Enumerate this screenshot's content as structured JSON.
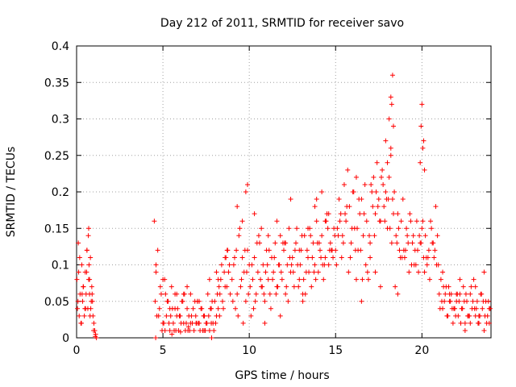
{
  "chart_data": {
    "type": "scatter",
    "title": "Day 212 of 2011, SRMTID for receiver savo",
    "xlabel": "GPS time / hours",
    "ylabel": "SRMTID / TECUs",
    "xlim": [
      0,
      24
    ],
    "ylim": [
      0,
      0.4
    ],
    "x_ticks": [
      0,
      5,
      10,
      15,
      20
    ],
    "x_tick_labels": [
      "0",
      "5",
      "10",
      "15",
      "20"
    ],
    "y_ticks": [
      0,
      0.05,
      0.1,
      0.15,
      0.2,
      0.25,
      0.3,
      0.35,
      0.4
    ],
    "y_tick_labels": [
      "0",
      "0.05",
      "0.1",
      "0.15",
      "0.2",
      "0.25",
      "0.3",
      "0.35",
      "0.4"
    ],
    "grid": true,
    "marker": "+",
    "color": "#ff0000",
    "series": [
      {
        "name": "SRMTID",
        "x": [
          0.02,
          0.05,
          0.1,
          0.15,
          0.2,
          0.25,
          0.3,
          0.35,
          0.4,
          0.45,
          0.5,
          0.55,
          0.6,
          0.65,
          0.7,
          0.75,
          0.8,
          0.85,
          0.9,
          0.95,
          1.0,
          1.05,
          1.1,
          1.15,
          0.08,
          0.18,
          0.28,
          0.38,
          0.48,
          0.58,
          0.68,
          0.78,
          0.88,
          0.98,
          1.08,
          0.12,
          0.32,
          0.52,
          0.72,
          0.92,
          0.6,
          0.7,
          0.75,
          0.82,
          4.5,
          4.6,
          4.7,
          4.8,
          4.9,
          5.0,
          5.1,
          5.2,
          5.3,
          5.4,
          5.5,
          5.6,
          5.7,
          5.8,
          5.9,
          6.0,
          6.1,
          6.2,
          6.3,
          6.4,
          6.5,
          6.6,
          6.7,
          6.8,
          6.9,
          7.0,
          7.1,
          7.2,
          7.3,
          7.4,
          7.5,
          7.6,
          7.7,
          7.8,
          7.9,
          8.0,
          8.1,
          8.2,
          8.3,
          8.4,
          8.5,
          8.6,
          8.7,
          8.8,
          8.9,
          4.55,
          4.75,
          4.95,
          5.15,
          5.35,
          5.55,
          5.75,
          5.95,
          6.15,
          6.35,
          6.55,
          6.75,
          6.95,
          7.15,
          7.35,
          7.55,
          7.75,
          7.95,
          8.15,
          8.35,
          8.55,
          8.75,
          4.65,
          4.85,
          5.05,
          5.25,
          5.45,
          5.65,
          5.85,
          6.05,
          6.25,
          6.45,
          6.65,
          6.85,
          7.05,
          7.25,
          7.45,
          7.65,
          7.85,
          8.05,
          8.25,
          8.45,
          8.65,
          8.85,
          4.6,
          5.0,
          5.4,
          5.8,
          6.2,
          6.6,
          7.0,
          7.4,
          7.8,
          8.2,
          8.6,
          4.58,
          5.12,
          5.52,
          6.02,
          6.48,
          6.92,
          7.38,
          7.82,
          8.28,
          8.72,
          5.7,
          6.4,
          7.1,
          7.7,
          8.1,
          9.0,
          9.1,
          9.2,
          9.3,
          9.4,
          9.5,
          9.6,
          9.7,
          9.8,
          9.9,
          10.0,
          10.1,
          10.2,
          10.3,
          10.4,
          10.5,
          10.6,
          10.7,
          10.8,
          10.9,
          11.0,
          11.1,
          11.2,
          11.3,
          11.4,
          11.5,
          11.6,
          11.7,
          11.8,
          11.9,
          12.0,
          12.1,
          12.2,
          12.3,
          12.4,
          12.5,
          12.6,
          12.7,
          12.8,
          12.9,
          13.0,
          13.1,
          13.2,
          13.3,
          13.4,
          13.5,
          13.6,
          13.7,
          13.8,
          13.9,
          14.0,
          14.1,
          14.2,
          14.3,
          14.4,
          14.5,
          14.6,
          14.7,
          14.8,
          14.9,
          9.05,
          9.25,
          9.45,
          9.65,
          9.85,
          10.05,
          10.25,
          10.45,
          10.65,
          10.85,
          11.05,
          11.25,
          11.45,
          11.65,
          11.85,
          12.05,
          12.25,
          12.45,
          12.65,
          12.85,
          13.05,
          13.25,
          13.45,
          13.65,
          13.85,
          14.05,
          14.25,
          14.45,
          14.65,
          14.85,
          9.15,
          9.35,
          9.55,
          9.75,
          9.95,
          10.15,
          10.35,
          10.55,
          10.75,
          10.95,
          11.15,
          11.35,
          11.55,
          11.75,
          11.95,
          12.15,
          12.35,
          12.55,
          12.75,
          12.95,
          13.15,
          13.35,
          13.55,
          13.75,
          13.95,
          14.15,
          14.35,
          14.55,
          14.75,
          14.95,
          9.3,
          9.8,
          9.9,
          10.3,
          10.7,
          11.1,
          11.6,
          12.1,
          12.4,
          12.9,
          13.4,
          13.8,
          14.2,
          14.6,
          9.6,
          10.9,
          11.8,
          13.1,
          13.9,
          14.4,
          15.0,
          15.1,
          15.2,
          15.3,
          15.4,
          15.5,
          15.6,
          15.7,
          15.8,
          15.9,
          16.0,
          16.1,
          16.2,
          16.3,
          16.4,
          16.5,
          16.6,
          16.7,
          16.8,
          16.9,
          17.0,
          17.1,
          17.2,
          17.3,
          17.4,
          17.5,
          17.6,
          17.7,
          17.8,
          17.9,
          18.0,
          18.1,
          18.2,
          18.3,
          18.4,
          18.5,
          18.6,
          18.7,
          18.8,
          18.9,
          19.0,
          19.1,
          19.2,
          19.3,
          19.4,
          19.5,
          19.6,
          19.7,
          19.8,
          19.9,
          20.0,
          20.1,
          20.2,
          20.3,
          20.4,
          20.5,
          20.6,
          20.7,
          20.8,
          20.9,
          15.05,
          15.25,
          15.45,
          15.65,
          15.85,
          16.05,
          16.25,
          16.45,
          16.65,
          16.85,
          17.05,
          17.25,
          17.45,
          17.65,
          17.85,
          18.05,
          18.25,
          18.45,
          18.65,
          18.85,
          19.05,
          19.25,
          19.45,
          19.65,
          19.85,
          20.05,
          20.25,
          20.45,
          20.65,
          20.85,
          15.15,
          15.35,
          15.55,
          15.75,
          15.95,
          16.15,
          16.35,
          16.55,
          16.75,
          16.95,
          17.15,
          17.35,
          17.55,
          17.75,
          17.95,
          18.15,
          18.35,
          18.55,
          18.75,
          18.95,
          19.15,
          19.35,
          19.55,
          19.75,
          19.95,
          20.15,
          20.35,
          20.55,
          20.75,
          20.95,
          17.9,
          18.0,
          18.1,
          18.2,
          18.3,
          18.35,
          18.2,
          18.25,
          19.95,
          20.0,
          20.05,
          20.1,
          19.9,
          20.15,
          16.2,
          16.5,
          17.0,
          17.3,
          17.6,
          18.6,
          21.0,
          21.1,
          21.2,
          21.3,
          21.4,
          21.5,
          21.6,
          21.7,
          21.8,
          21.9,
          22.0,
          22.1,
          22.2,
          22.3,
          22.4,
          22.5,
          22.6,
          22.7,
          22.8,
          22.9,
          23.0,
          23.1,
          23.2,
          23.3,
          23.4,
          23.5,
          23.6,
          23.7,
          23.8,
          23.9,
          21.05,
          21.25,
          21.45,
          21.65,
          21.85,
          22.05,
          22.25,
          22.45,
          22.65,
          22.85,
          23.05,
          23.25,
          23.45,
          23.65,
          23.85,
          21.15,
          21.35,
          21.55,
          21.75,
          21.95,
          22.15,
          22.35,
          22.55,
          22.75,
          22.95,
          23.15,
          23.35,
          23.55,
          23.75,
          23.95,
          22.2,
          22.8,
          23.1,
          23.6,
          21.6,
          22.5,
          23.3,
          23.9,
          21.2,
          22.0
        ],
        "y": [
          0.08,
          0.04,
          0.13,
          0.03,
          0.06,
          0.02,
          0.1,
          0.05,
          0.07,
          0.03,
          0.09,
          0.06,
          0.12,
          0.04,
          0.15,
          0.08,
          0.11,
          0.05,
          0.06,
          0.03,
          0.02,
          0.01,
          0.005,
          0.0,
          0.05,
          0.11,
          0.02,
          0.07,
          0.04,
          0.09,
          0.14,
          0.03,
          0.07,
          0.01,
          0.002,
          0.09,
          0.06,
          0.04,
          0.1,
          0.05,
          0.12,
          0.08,
          0.06,
          0.04,
          0.16,
          0.09,
          0.12,
          0.04,
          0.06,
          0.02,
          0.08,
          0.03,
          0.05,
          0.01,
          0.07,
          0.02,
          0.04,
          0.06,
          0.01,
          0.03,
          0.05,
          0.02,
          0.01,
          0.04,
          0.03,
          0.06,
          0.02,
          0.01,
          0.03,
          0.05,
          0.02,
          0.04,
          0.01,
          0.03,
          0.02,
          0.06,
          0.01,
          0.04,
          0.02,
          0.05,
          0.03,
          0.08,
          0.06,
          0.1,
          0.04,
          0.11,
          0.07,
          0.09,
          0.06,
          0.05,
          0.03,
          0.01,
          0.06,
          0.02,
          0.04,
          0.01,
          0.03,
          0.05,
          0.02,
          0.01,
          0.04,
          0.02,
          0.01,
          0.03,
          0.02,
          0.04,
          0.01,
          0.06,
          0.08,
          0.09,
          0.12,
          0.03,
          0.07,
          0.02,
          0.05,
          0.03,
          0.01,
          0.04,
          0.02,
          0.06,
          0.01,
          0.03,
          0.05,
          0.02,
          0.04,
          0.01,
          0.03,
          0.05,
          0.02,
          0.07,
          0.05,
          0.11,
          0.1,
          0.1,
          0.08,
          0.04,
          0.03,
          0.06,
          0.02,
          0.05,
          0.03,
          0.02,
          0.04,
          0.07,
          0.0,
          0.01,
          0.005,
          0.008,
          0.015,
          0.02,
          0.01,
          0.0,
          0.03,
          0.12,
          0.06,
          0.07,
          0.05,
          0.08,
          0.09,
          0.08,
          0.1,
          0.04,
          0.06,
          0.14,
          0.07,
          0.11,
          0.09,
          0.05,
          0.12,
          0.1,
          0.03,
          0.08,
          0.11,
          0.06,
          0.09,
          0.13,
          0.07,
          0.1,
          0.05,
          0.12,
          0.08,
          0.06,
          0.11,
          0.09,
          0.13,
          0.07,
          0.1,
          0.14,
          0.08,
          0.12,
          0.06,
          0.1,
          0.15,
          0.09,
          0.11,
          0.07,
          0.13,
          0.1,
          0.08,
          0.12,
          0.06,
          0.14,
          0.09,
          0.11,
          0.15,
          0.07,
          0.13,
          0.1,
          0.16,
          0.09,
          0.12,
          0.14,
          0.08,
          0.11,
          0.17,
          0.1,
          0.13,
          0.12,
          0.15,
          0.05,
          0.12,
          0.15,
          0.02,
          0.09,
          0.07,
          0.04,
          0.13,
          0.08,
          0.06,
          0.1,
          0.04,
          0.11,
          0.07,
          0.09,
          0.13,
          0.05,
          0.1,
          0.12,
          0.07,
          0.14,
          0.06,
          0.09,
          0.11,
          0.08,
          0.13,
          0.1,
          0.16,
          0.12,
          0.11,
          0.11,
          0.03,
          0.08,
          0.12,
          0.06,
          0.1,
          0.05,
          0.14,
          0.07,
          0.09,
          0.12,
          0.08,
          0.06,
          0.1,
          0.13,
          0.07,
          0.11,
          0.09,
          0.15,
          0.1,
          0.08,
          0.12,
          0.14,
          0.09,
          0.13,
          0.11,
          0.1,
          0.15,
          0.12,
          0.14,
          0.18,
          0.2,
          0.21,
          0.17,
          0.15,
          0.14,
          0.16,
          0.13,
          0.19,
          0.12,
          0.15,
          0.18,
          0.2,
          0.17,
          0.16,
          0.02,
          0.03,
          0.05,
          0.19,
          0.16,
          0.12,
          0.15,
          0.19,
          0.17,
          0.14,
          0.21,
          0.16,
          0.23,
          0.18,
          0.13,
          0.2,
          0.15,
          0.22,
          0.12,
          0.17,
          0.19,
          0.14,
          0.21,
          0.16,
          0.08,
          0.13,
          0.2,
          0.22,
          0.17,
          0.24,
          0.19,
          0.16,
          0.23,
          0.18,
          0.2,
          0.15,
          0.22,
          0.25,
          0.19,
          0.2,
          0.14,
          0.17,
          0.12,
          0.16,
          0.19,
          0.11,
          0.15,
          0.13,
          0.17,
          0.1,
          0.14,
          0.12,
          0.16,
          0.09,
          0.13,
          0.15,
          0.11,
          0.14,
          0.1,
          0.12,
          0.16,
          0.13,
          0.11,
          0.18,
          0.14,
          0.1,
          0.16,
          0.13,
          0.18,
          0.11,
          0.2,
          0.15,
          0.12,
          0.17,
          0.09,
          0.21,
          0.14,
          0.18,
          0.22,
          0.16,
          0.19,
          0.13,
          0.07,
          0.15,
          0.11,
          0.12,
          0.09,
          0.13,
          0.1,
          0.14,
          0.16,
          0.11,
          0.08,
          0.13,
          0.1,
          0.14,
          0.11,
          0.17,
          0.09,
          0.15,
          0.12,
          0.19,
          0.08,
          0.1,
          0.14,
          0.18,
          0.2,
          0.16,
          0.21,
          0.19,
          0.15,
          0.17,
          0.13,
          0.11,
          0.12,
          0.14,
          0.16,
          0.1,
          0.12,
          0.13,
          0.09,
          0.11,
          0.15,
          0.12,
          0.1,
          0.27,
          0.24,
          0.3,
          0.33,
          0.36,
          0.29,
          0.26,
          0.32,
          0.29,
          0.32,
          0.26,
          0.27,
          0.24,
          0.23,
          0.08,
          0.05,
          0.11,
          0.09,
          0.07,
          0.06,
          0.06,
          0.08,
          0.04,
          0.05,
          0.07,
          0.03,
          0.05,
          0.06,
          0.02,
          0.04,
          0.05,
          0.03,
          0.06,
          0.04,
          0.07,
          0.02,
          0.05,
          0.03,
          0.06,
          0.04,
          0.08,
          0.03,
          0.05,
          0.02,
          0.06,
          0.04,
          0.01,
          0.05,
          0.03,
          0.04,
          0.04,
          0.07,
          0.03,
          0.05,
          0.04,
          0.06,
          0.02,
          0.05,
          0.03,
          0.07,
          0.04,
          0.02,
          0.06,
          0.03,
          0.05,
          0.05,
          0.06,
          0.07,
          0.04,
          0.03,
          0.05,
          0.04,
          0.06,
          0.03,
          0.05,
          0.04,
          0.03,
          0.05,
          0.02,
          0.04,
          0.08,
          0.02,
          0.07,
          0.09,
          0.06,
          0.01,
          0.03,
          0.02,
          0.09,
          0.06
        ]
      }
    ]
  }
}
